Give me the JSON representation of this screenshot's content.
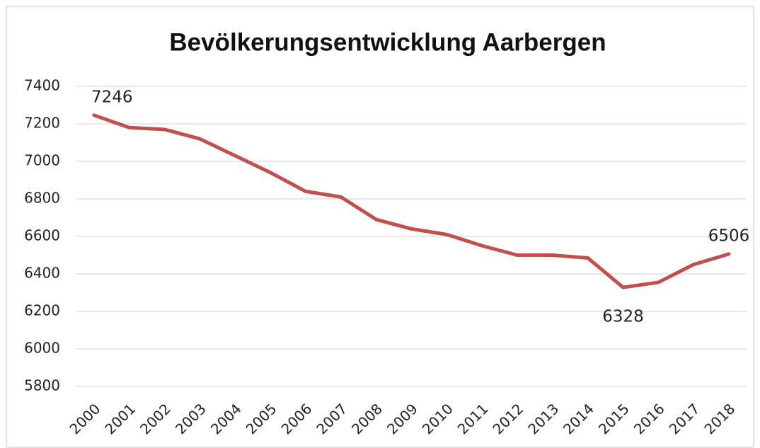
{
  "chart_data": {
    "type": "line",
    "title": "Bevölkerungsentwicklung Aarbergen",
    "categories": [
      "2000",
      "2001",
      "2002",
      "2003",
      "2004",
      "2005",
      "2006",
      "2007",
      "2008",
      "2009",
      "2010",
      "2011",
      "2012",
      "2013",
      "2014",
      "2015",
      "2016",
      "2017",
      "2018"
    ],
    "values": [
      7246,
      7180,
      7170,
      7120,
      7030,
      6940,
      6840,
      6810,
      6690,
      6640,
      6610,
      6550,
      6500,
      6500,
      6485,
      6328,
      6355,
      6450,
      6506
    ],
    "color": "#c0504d",
    "ylim": [
      5800,
      7400
    ],
    "yticks": [
      5800,
      6000,
      6200,
      6400,
      6600,
      6800,
      7000,
      7200,
      7400
    ],
    "grid": true,
    "label_indices": [
      0,
      15,
      18
    ]
  }
}
